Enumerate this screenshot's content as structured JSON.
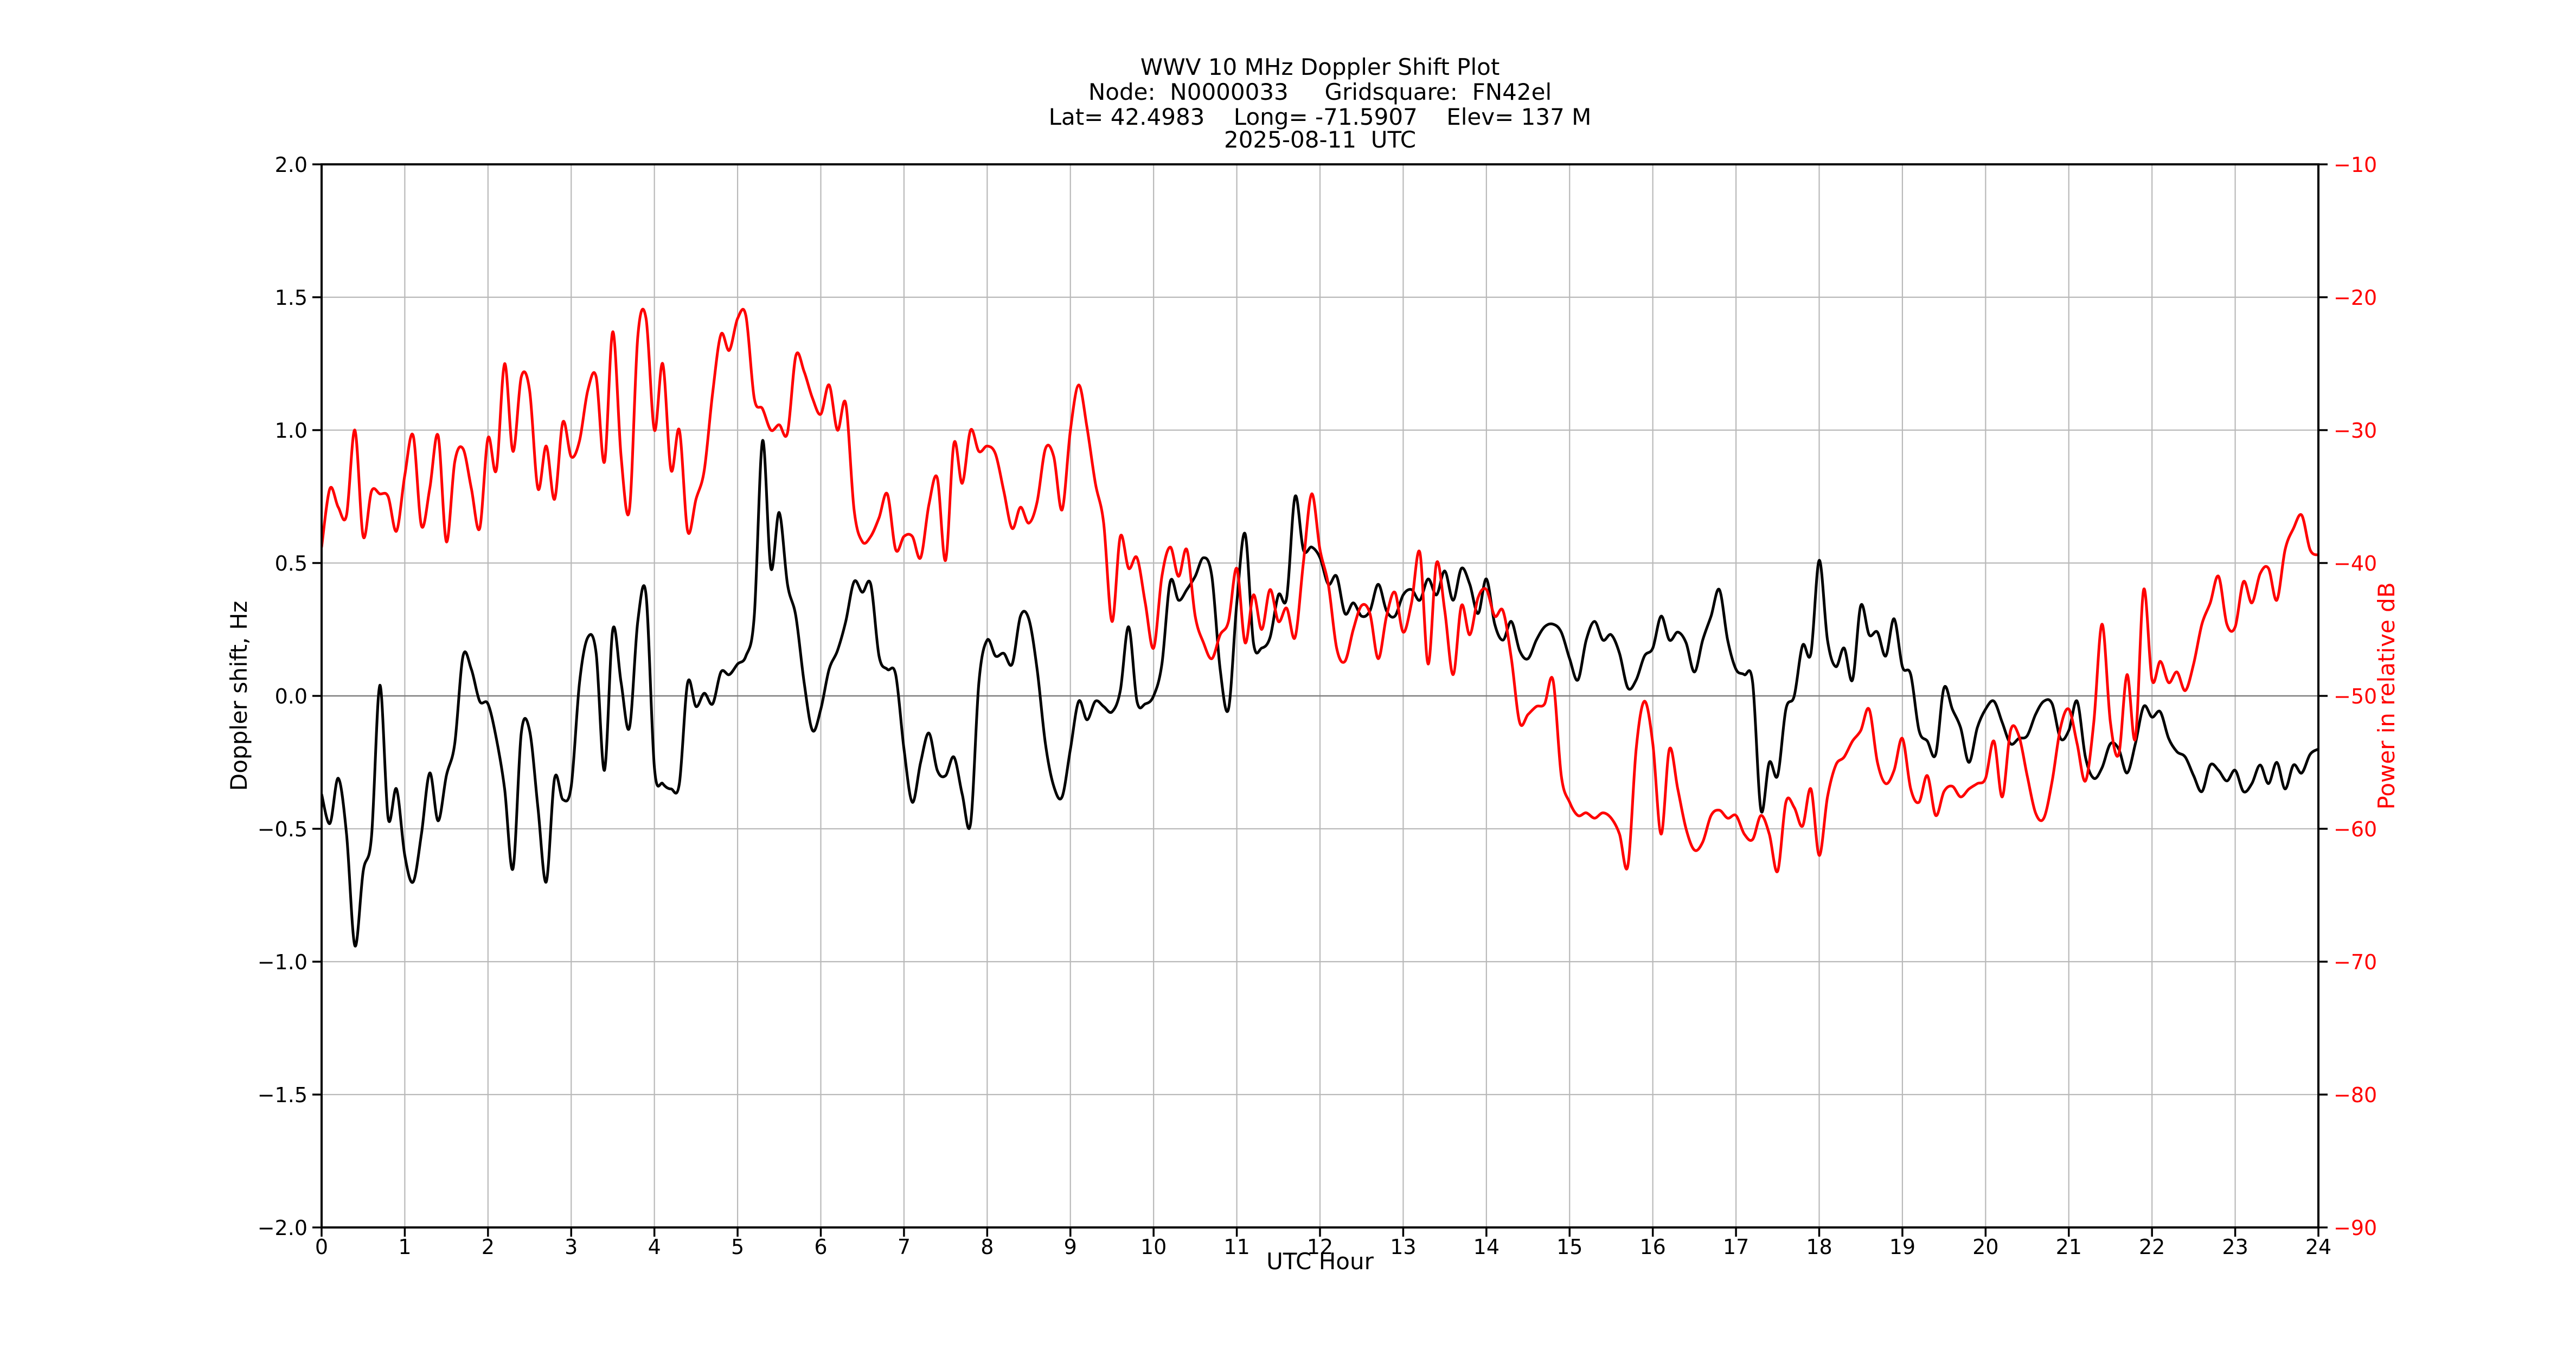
{
  "chart_data": {
    "type": "line",
    "title": "WWV 10 MHz Doppler Shift Plot",
    "header_lines": [
      "WWV 10 MHz Doppler Shift Plot",
      "Node:  N0000033     Gridsquare:  FN42el",
      "Lat= 42.4983    Long= -71.5907    Elev= 137 M",
      "2025-08-11  UTC"
    ],
    "xlabel": "UTC Hour",
    "ylabel_left": "Doppler shift, Hz",
    "ylabel_right": "Power in relative dB",
    "grid": true,
    "x_range": [
      0,
      24
    ],
    "x_tick_values": [
      0,
      1,
      2,
      3,
      4,
      5,
      6,
      7,
      8,
      9,
      10,
      11,
      12,
      13,
      14,
      15,
      16,
      17,
      18,
      19,
      20,
      21,
      22,
      23,
      24
    ],
    "x_tick_labels": [
      "0",
      "1",
      "2",
      "3",
      "4",
      "5",
      "6",
      "7",
      "8",
      "9",
      "10",
      "11",
      "12",
      "13",
      "14",
      "15",
      "16",
      "17",
      "18",
      "19",
      "20",
      "21",
      "22",
      "23",
      "24"
    ],
    "y_left_range": [
      -2.0,
      2.0
    ],
    "y_left_tick_values": [
      2.0,
      1.5,
      1.0,
      0.5,
      0.0,
      -0.5,
      -1.0,
      -1.5,
      -2.0
    ],
    "y_left_tick_labels": [
      "2.0",
      "1.5",
      "1.0",
      "0.5",
      "0.0",
      "−0.5",
      "−1.0",
      "−1.5",
      "−2.0"
    ],
    "y_right_range": [
      -90,
      -10
    ],
    "y_right_tick_values": [
      -10,
      -20,
      -30,
      -40,
      -50,
      -60,
      -70,
      -80,
      -90
    ],
    "y_right_tick_labels": [
      "−10",
      "−20",
      "−30",
      "−40",
      "−50",
      "−60",
      "−70",
      "−80",
      "−90"
    ],
    "x_start": 0.0,
    "x_step": 0.1,
    "series": [
      {
        "name": "doppler_shift_hz",
        "axis": "left",
        "color": "#000000",
        "values": [
          -0.37,
          -0.48,
          -0.31,
          -0.52,
          -0.94,
          -0.66,
          -0.53,
          0.04,
          -0.46,
          -0.35,
          -0.6,
          -0.7,
          -0.52,
          -0.29,
          -0.47,
          -0.3,
          -0.18,
          0.15,
          0.1,
          -0.02,
          -0.03,
          -0.16,
          -0.35,
          -0.65,
          -0.14,
          -0.13,
          -0.42,
          -0.7,
          -0.31,
          -0.39,
          -0.34,
          0.05,
          0.22,
          0.16,
          -0.28,
          0.25,
          0.05,
          -0.12,
          0.28,
          0.38,
          -0.27,
          -0.33,
          -0.35,
          -0.33,
          0.05,
          -0.04,
          0.01,
          -0.03,
          0.09,
          0.08,
          0.12,
          0.15,
          0.3,
          0.96,
          0.48,
          0.69,
          0.42,
          0.3,
          0.05,
          -0.13,
          -0.05,
          0.1,
          0.17,
          0.28,
          0.43,
          0.39,
          0.42,
          0.15,
          0.1,
          0.08,
          -0.2,
          -0.4,
          -0.25,
          -0.14,
          -0.28,
          -0.3,
          -0.23,
          -0.37,
          -0.48,
          0.05,
          0.21,
          0.15,
          0.16,
          0.12,
          0.3,
          0.29,
          0.1,
          -0.18,
          -0.34,
          -0.38,
          -0.2,
          -0.02,
          -0.09,
          -0.02,
          -0.04,
          -0.06,
          0.02,
          0.26,
          -0.02,
          -0.03,
          0.0,
          0.12,
          0.43,
          0.36,
          0.4,
          0.45,
          0.52,
          0.45,
          0.1,
          -0.05,
          0.35,
          0.61,
          0.2,
          0.18,
          0.22,
          0.38,
          0.37,
          0.75,
          0.55,
          0.56,
          0.52,
          0.42,
          0.45,
          0.31,
          0.35,
          0.3,
          0.32,
          0.42,
          0.32,
          0.3,
          0.38,
          0.4,
          0.36,
          0.44,
          0.38,
          0.47,
          0.36,
          0.48,
          0.42,
          0.31,
          0.44,
          0.27,
          0.21,
          0.28,
          0.17,
          0.14,
          0.21,
          0.26,
          0.27,
          0.24,
          0.14,
          0.06,
          0.21,
          0.28,
          0.21,
          0.23,
          0.16,
          0.03,
          0.06,
          0.15,
          0.18,
          0.3,
          0.21,
          0.24,
          0.2,
          0.09,
          0.21,
          0.3,
          0.4,
          0.21,
          0.1,
          0.08,
          0.05,
          -0.43,
          -0.25,
          -0.3,
          -0.05,
          0.0,
          0.19,
          0.16,
          0.51,
          0.21,
          0.11,
          0.18,
          0.06,
          0.34,
          0.23,
          0.24,
          0.15,
          0.29,
          0.11,
          0.08,
          -0.13,
          -0.17,
          -0.22,
          0.03,
          -0.05,
          -0.12,
          -0.25,
          -0.12,
          -0.05,
          -0.02,
          -0.1,
          -0.18,
          -0.16,
          -0.15,
          -0.07,
          -0.02,
          -0.03,
          -0.16,
          -0.13,
          -0.02,
          -0.23,
          -0.31,
          -0.27,
          -0.18,
          -0.2,
          -0.29,
          -0.18,
          -0.04,
          -0.08,
          -0.06,
          -0.16,
          -0.21,
          -0.23,
          -0.3,
          -0.36,
          -0.26,
          -0.28,
          -0.32,
          -0.28,
          -0.36,
          -0.33,
          -0.26,
          -0.33,
          -0.25,
          -0.35,
          -0.26,
          -0.29,
          -0.22,
          -0.2
        ]
      },
      {
        "name": "power_relative_db",
        "axis": "right",
        "color": "#ff0000",
        "values": [
          -38.8,
          -34.4,
          -35.8,
          -36.4,
          -30.0,
          -38.0,
          -34.6,
          -34.8,
          -35.0,
          -37.6,
          -33.4,
          -30.4,
          -37.2,
          -34.4,
          -30.4,
          -38.4,
          -32.4,
          -31.4,
          -34.4,
          -37.4,
          -30.6,
          -33.0,
          -25.0,
          -31.6,
          -26.0,
          -27.0,
          -34.4,
          -31.2,
          -35.2,
          -29.4,
          -32.0,
          -30.8,
          -27.0,
          -26.0,
          -32.4,
          -22.6,
          -32.0,
          -36.0,
          -23.0,
          -21.6,
          -30.0,
          -25.0,
          -33.0,
          -30.0,
          -37.6,
          -35.2,
          -33.0,
          -27.2,
          -22.8,
          -24.0,
          -21.6,
          -21.4,
          -27.6,
          -28.4,
          -30.0,
          -29.6,
          -30.2,
          -24.4,
          -25.6,
          -27.6,
          -28.8,
          -26.6,
          -30.0,
          -28.0,
          -36.0,
          -38.4,
          -38.0,
          -36.6,
          -34.8,
          -39.0,
          -38.0,
          -38.0,
          -39.6,
          -35.6,
          -33.6,
          -39.8,
          -31.0,
          -34.0,
          -30.0,
          -31.6,
          -31.2,
          -31.8,
          -34.6,
          -37.4,
          -35.8,
          -37.0,
          -35.4,
          -31.4,
          -32.0,
          -36.0,
          -30.0,
          -26.6,
          -29.8,
          -34.0,
          -37.0,
          -44.4,
          -38.0,
          -40.4,
          -39.6,
          -43.0,
          -46.4,
          -41.0,
          -38.8,
          -41.0,
          -39.0,
          -44.0,
          -46.0,
          -47.2,
          -45.4,
          -44.4,
          -40.4,
          -46.0,
          -42.4,
          -45.0,
          -42.0,
          -44.4,
          -43.4,
          -45.6,
          -40.0,
          -34.8,
          -39.0,
          -41.6,
          -46.4,
          -47.4,
          -45.0,
          -43.2,
          -43.8,
          -47.2,
          -44.0,
          -42.2,
          -45.2,
          -43.0,
          -39.2,
          -47.6,
          -40.0,
          -43.6,
          -48.4,
          -43.2,
          -45.4,
          -42.6,
          -42.0,
          -44.0,
          -43.6,
          -47.2,
          -52.0,
          -51.4,
          -50.8,
          -50.6,
          -48.8,
          -56.0,
          -58.0,
          -59.0,
          -58.8,
          -59.2,
          -58.8,
          -59.2,
          -60.4,
          -62.8,
          -54.0,
          -50.4,
          -53.6,
          -60.4,
          -54.0,
          -57.0,
          -60.0,
          -61.6,
          -61.0,
          -59.0,
          -58.6,
          -59.2,
          -59.0,
          -60.4,
          -60.8,
          -59.0,
          -60.4,
          -63.2,
          -58.0,
          -58.4,
          -59.8,
          -57.0,
          -62.0,
          -57.6,
          -55.2,
          -54.6,
          -53.4,
          -52.6,
          -51.0,
          -55.0,
          -56.6,
          -55.6,
          -53.2,
          -57.0,
          -58.0,
          -56.0,
          -59.0,
          -57.2,
          -56.8,
          -57.6,
          -57.0,
          -56.6,
          -56.2,
          -53.4,
          -57.6,
          -52.6,
          -53.0,
          -56.0,
          -58.8,
          -59.2,
          -56.4,
          -52.4,
          -51.0,
          -53.6,
          -56.4,
          -52.0,
          -44.6,
          -52.0,
          -54.4,
          -48.4,
          -53.2,
          -42.0,
          -48.8,
          -47.4,
          -49.0,
          -48.2,
          -49.6,
          -47.6,
          -44.6,
          -43.0,
          -41.0,
          -44.6,
          -44.8,
          -41.4,
          -43.0,
          -40.8,
          -40.4,
          -42.8,
          -39.0,
          -37.4,
          -36.4,
          -39.0,
          -39.4
        ]
      }
    ]
  },
  "colors": {
    "doppler_line": "#000000",
    "power_line": "#ff0000",
    "grid": "#b9b9b9",
    "zero_line": "#7d7d7d",
    "spine": "#000000",
    "background": "#ffffff"
  }
}
